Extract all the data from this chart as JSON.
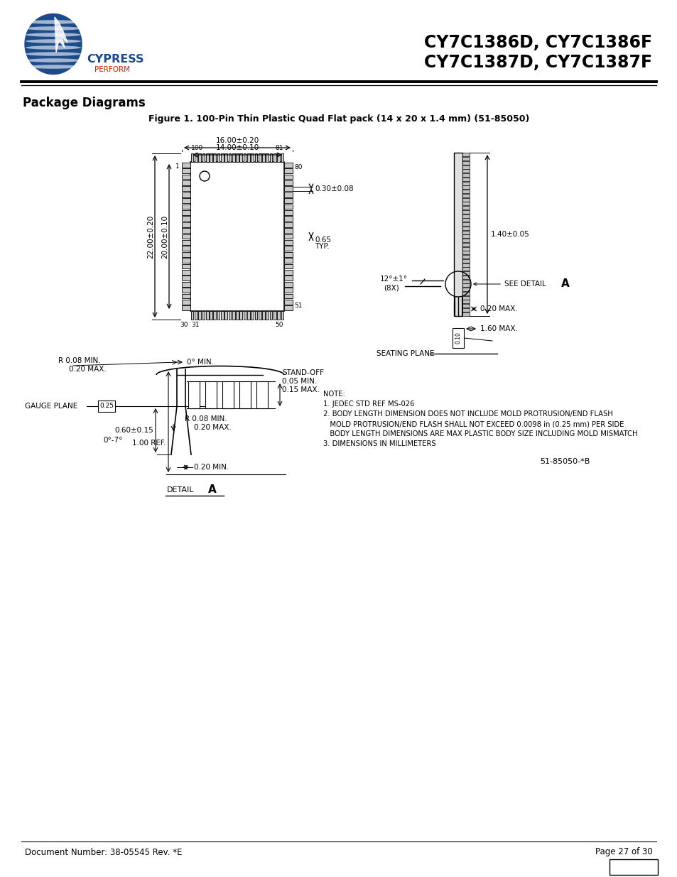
{
  "title_line1": "CY7C1386D, CY7C1386F",
  "title_line2": "CY7C1387D, CY7C1387F",
  "section_title": "Package Diagrams",
  "figure_title": "Figure 1. 100-Pin Thin Plastic Quad Flat pack (14 x 20 x 1.4 mm) (51-85050)",
  "doc_number": "Document Number: 38-05545 Rev. *E",
  "page_info": "Page 27 of 30",
  "bg_color": "#ffffff",
  "line_color": "#000000",
  "text_color": "#000000",
  "notes": [
    "NOTE:",
    "1. JEDEC STD REF MS-026",
    "2. BODY LENGTH DIMENSION DOES NOT INCLUDE MOLD PROTRUSION/END FLASH",
    "   MOLD PROTRUSION/END FLASH SHALL NOT EXCEED 0.0098 in (0.25 mm) PER SIDE",
    "   BODY LENGTH DIMENSIONS ARE MAX PLASTIC BODY SIZE INCLUDING MOLD MISMATCH",
    "3. DIMENSIONS IN MILLIMETERS"
  ],
  "part_number_bottom": "51-85050-*B"
}
